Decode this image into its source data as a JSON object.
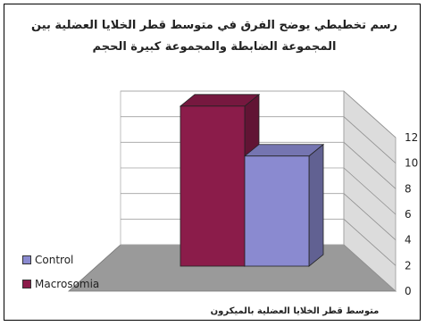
{
  "chart_data": {
    "type": "bar",
    "title": "رسم تخطيطي يوضح الفرق في متوسط قطر الخلايا العضلية بين",
    "subtitle": "المجموعة الضابطة والمجموعة كبيرة الحجم",
    "xlabel": "متوسط قطر الخلايا العضلية بالميكرون",
    "ylabel": "",
    "ylim": [
      0,
      12
    ],
    "yticks": [
      "0",
      "2",
      "4",
      "6",
      "8",
      "10",
      "12"
    ],
    "legend_position": "bottom-left",
    "grid": true,
    "three_d": true,
    "series": [
      {
        "name": "Macrosomia",
        "values": [
          12.5
        ],
        "color": "#8b1c4a"
      },
      {
        "name": "Control",
        "values": [
          8.6
        ],
        "color": "#8a8ad0"
      }
    ]
  }
}
